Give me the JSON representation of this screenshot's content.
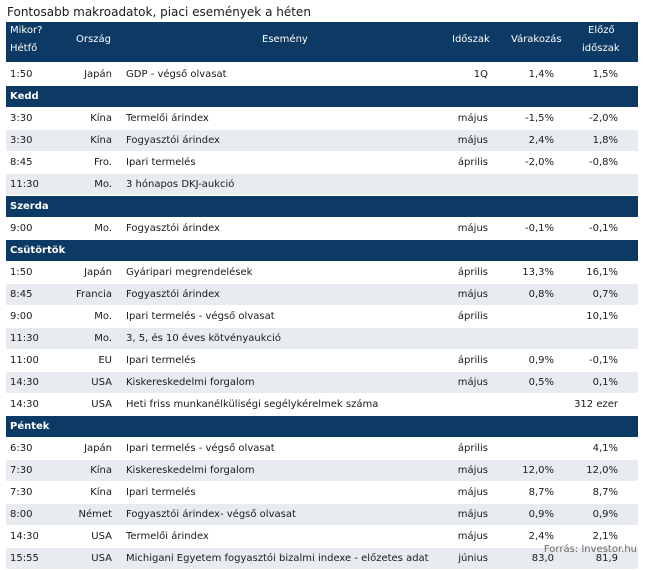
{
  "title": "Fontosabb makroadatok, piaci események a héten",
  "header": {
    "when_line1": "Mikor?",
    "when_line2": "Hétfő",
    "country": "Ország",
    "event": "Esemény",
    "period": "Időszak",
    "expectation": "Várakozás",
    "prev_line1": "Előző",
    "prev_line2": "időszak"
  },
  "rows": [
    {
      "type": "data",
      "time": "1:50",
      "country": "Japán",
      "event": "GDP - végső olvasat",
      "period": "1Q",
      "exp": "1,4%",
      "prev": "1,5%"
    },
    {
      "type": "day",
      "label": "Kedd"
    },
    {
      "type": "data",
      "time": "3:30",
      "country": "Kína",
      "event": "Termelői árindex",
      "period": "május",
      "exp": "-1,5%",
      "prev": "-2,0%"
    },
    {
      "type": "data",
      "time": "3:30",
      "country": "Kína",
      "event": "Fogyasztói árindex",
      "period": "május",
      "exp": "2,4%",
      "prev": "1,8%"
    },
    {
      "type": "data",
      "time": "8:45",
      "country": "Fro.",
      "event": "Ipari termelés",
      "period": "április",
      "exp": "-2,0%",
      "prev": "-0,8%"
    },
    {
      "type": "data",
      "time": "11:30",
      "country": "Mo.",
      "event": "3 hónapos DKJ-aukció",
      "period": "",
      "exp": "",
      "prev": ""
    },
    {
      "type": "day",
      "label": "Szerda"
    },
    {
      "type": "data",
      "time": "9:00",
      "country": "Mo.",
      "event": "Fogyasztói árindex",
      "period": "május",
      "exp": "-0,1%",
      "prev": "-0,1%"
    },
    {
      "type": "day",
      "label": "Csütörtök"
    },
    {
      "type": "data",
      "time": "1:50",
      "country": "Japán",
      "event": "Gyáripari megrendelések",
      "period": "április",
      "exp": "13,3%",
      "prev": "16,1%"
    },
    {
      "type": "data",
      "time": "8:45",
      "country": "Francia",
      "event": "Fogyasztói árindex",
      "period": "május",
      "exp": "0,8%",
      "prev": "0,7%"
    },
    {
      "type": "data",
      "time": "9:00",
      "country": "Mo.",
      "event": "Ipari termelés - végső olvasat",
      "period": "április",
      "exp": "",
      "prev": "10,1%"
    },
    {
      "type": "data",
      "time": "11:30",
      "country": "Mo.",
      "event": "3, 5, és 10 éves kötvényaukció",
      "period": "",
      "exp": "",
      "prev": ""
    },
    {
      "type": "data",
      "time": "11:00",
      "country": "EU",
      "event": "Ipari termelés",
      "period": "április",
      "exp": "0,9%",
      "prev": "-0,1%"
    },
    {
      "type": "data",
      "time": "14:30",
      "country": "USA",
      "event": "Kiskereskedelmi forgalom",
      "period": "május",
      "exp": "0,5%",
      "prev": "0,1%"
    },
    {
      "type": "data",
      "time": "14:30",
      "country": "USA",
      "event": "Heti friss munkanélküliségi segélykérelmek száma",
      "period": "",
      "exp": "",
      "prev": "312 ezer"
    },
    {
      "type": "day",
      "label": "Péntek"
    },
    {
      "type": "data",
      "time": "6:30",
      "country": "Japán",
      "event": "Ipari termelés - végső olvasat",
      "period": "április",
      "exp": "",
      "prev": "4,1%"
    },
    {
      "type": "data",
      "time": "7:30",
      "country": "Kína",
      "event": "Kiskereskedelmi forgalom",
      "period": "május",
      "exp": "12,0%",
      "prev": "12,0%"
    },
    {
      "type": "data",
      "time": "7:30",
      "country": "Kína",
      "event": "Ipari termelés",
      "period": "május",
      "exp": "8,7%",
      "prev": "8,7%"
    },
    {
      "type": "data",
      "time": "8:00",
      "country": "Német",
      "event": "Fogyasztói árindex- végső olvasat",
      "period": "május",
      "exp": "0,9%",
      "prev": "0,9%"
    },
    {
      "type": "data",
      "time": "14:30",
      "country": "USA",
      "event": "Termelői árindex",
      "period": "május",
      "exp": "2,4%",
      "prev": "2,1%"
    },
    {
      "type": "data",
      "time": "15:55",
      "country": "USA",
      "event": "Michigani Egyetem fogyasztói bizalmi indexe - előzetes adat",
      "period": "június",
      "exp": "83,0",
      "prev": "81,9"
    }
  ],
  "source": "Forrás: Investor.hu"
}
